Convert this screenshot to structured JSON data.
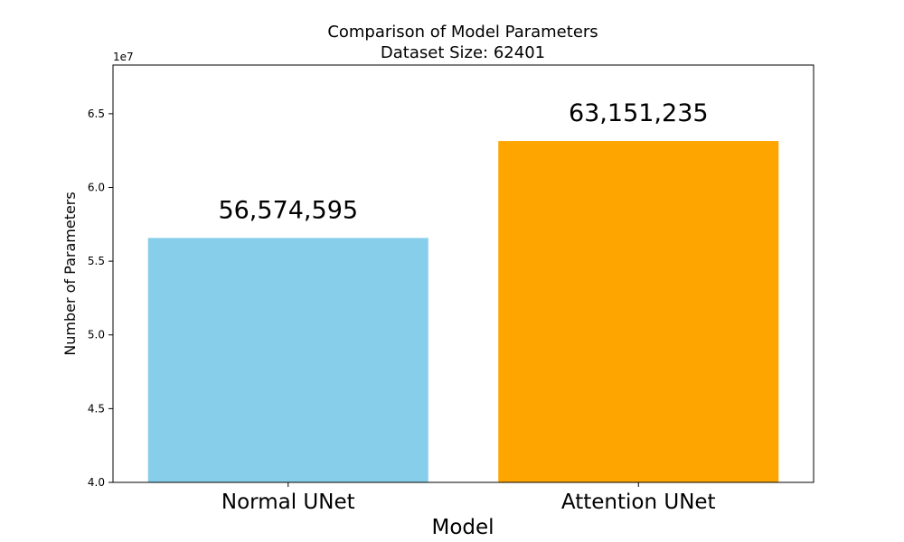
{
  "chart_data": {
    "type": "bar",
    "title": "Comparison of Model Parameters",
    "subtitle": "Dataset Size: 62401",
    "xlabel": "Model",
    "ylabel": "Number of Parameters",
    "categories": [
      "Normal UNet",
      "Attention UNet"
    ],
    "values": [
      56574595,
      63151235
    ],
    "data_labels": [
      "56,574,595",
      "63,151,235"
    ],
    "colors": [
      "#87CEEB",
      "#FFA500"
    ],
    "ylim": [
      40000000,
      68300000
    ],
    "y_ticks": [
      40000000,
      45000000,
      50000000,
      55000000,
      60000000,
      65000000
    ],
    "y_tick_labels": [
      "4.0",
      "4.5",
      "5.0",
      "5.5",
      "6.0",
      "6.5"
    ],
    "y_offset_label": "1e7",
    "grid": false
  }
}
